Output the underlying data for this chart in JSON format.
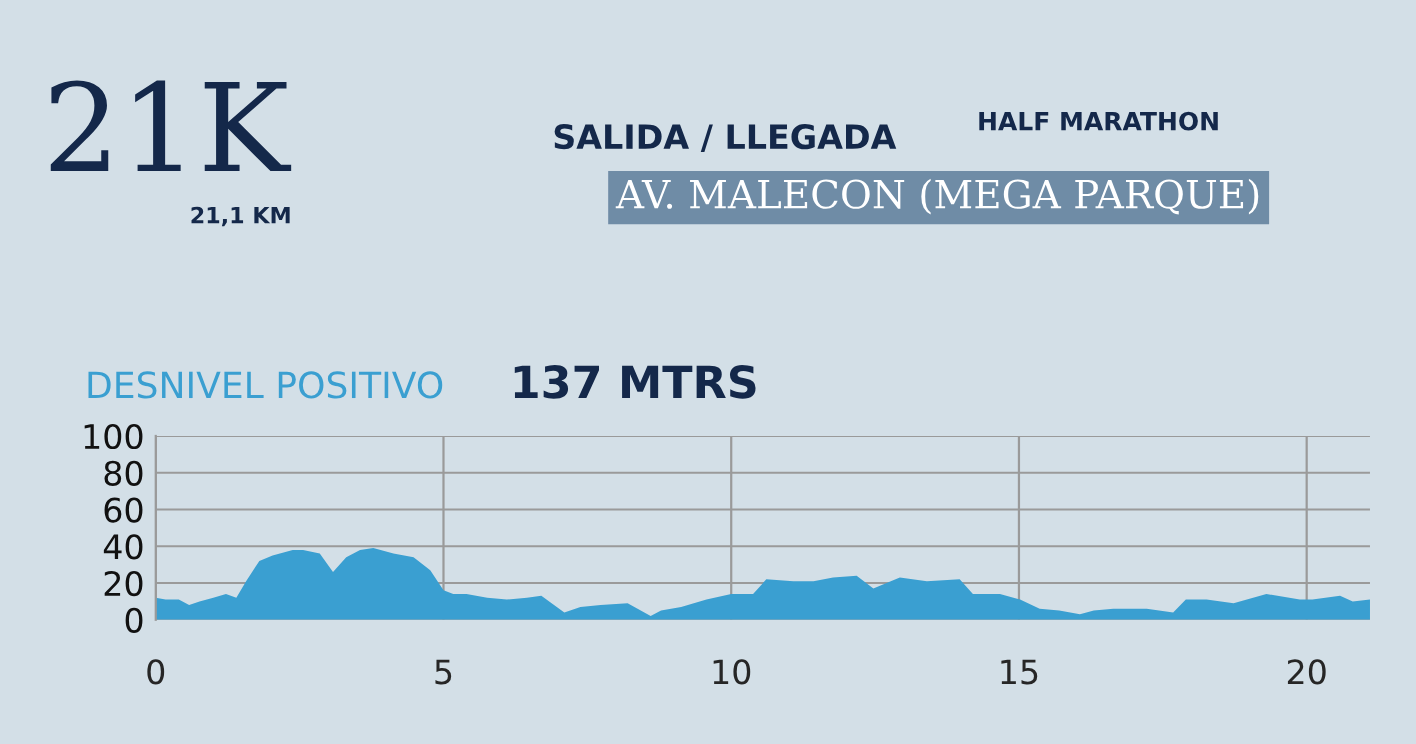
{
  "chart_data": {
    "type": "area",
    "title": "21K",
    "annotations": [
      "21,1 KM",
      "SALIDA / LLEGADA",
      "HALF MARATHON",
      "AV. MALECON (MEGA PARQUE)",
      "DESNIVEL POSITIVO",
      "137 MTRS"
    ],
    "series": [
      {
        "color": "#3a9fd1",
        "x": [
          0,
          0.17,
          0.4,
          0.58,
          0.76,
          1.0,
          1.22,
          1.4,
          1.57,
          1.8,
          2.03,
          2.38,
          2.56,
          2.85,
          3.08,
          3.31,
          3.55,
          3.78,
          4.13,
          4.48,
          4.77,
          5.0,
          5.17,
          5.4,
          5.76,
          6.1,
          6.45,
          6.7,
          7.1,
          7.38,
          7.73,
          8.2,
          8.6,
          8.78,
          9.13,
          9.57,
          10.0,
          10.38,
          10.61,
          11.08,
          11.43,
          11.77,
          12.18,
          12.47,
          12.93,
          13.4,
          13.97,
          14.2,
          14.67,
          15.02,
          15.36,
          15.7,
          16.06,
          16.3,
          16.64,
          17.22,
          17.68,
          17.9,
          18.26,
          18.73,
          19.3,
          19.88,
          20.1,
          20.58,
          20.8,
          21.1
        ],
        "values": [
          12,
          11,
          11,
          8,
          10,
          12,
          14,
          12,
          21,
          32,
          35,
          38,
          38,
          36,
          26,
          34,
          38,
          39,
          36,
          34,
          27,
          16,
          14,
          14,
          12,
          11,
          12,
          13,
          4,
          7,
          8,
          9,
          2,
          5,
          7,
          11,
          14,
          14,
          22,
          21,
          21,
          23,
          24,
          17,
          23,
          21,
          22,
          14,
          14,
          11,
          6,
          5,
          3,
          5,
          6,
          6,
          4,
          11,
          11,
          9,
          14,
          11,
          11,
          13,
          10,
          11
        ]
      }
    ],
    "xlim": [
      0,
      21.1
    ],
    "ylim": [
      0,
      100
    ],
    "xticks": [
      0,
      5,
      10,
      15,
      20
    ],
    "yticks": [
      0,
      20,
      40,
      60,
      80,
      100
    ],
    "grid": true
  }
}
